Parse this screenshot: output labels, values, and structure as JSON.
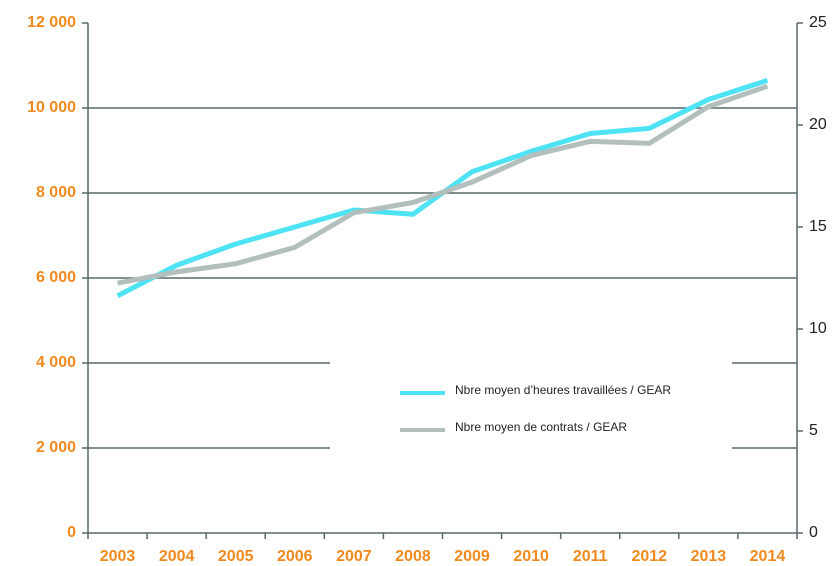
{
  "chart_data": {
    "type": "line",
    "categories": [
      "2003",
      "2004",
      "2005",
      "2006",
      "2007",
      "2008",
      "2009",
      "2010",
      "2011",
      "2012",
      "2013",
      "2014"
    ],
    "series": [
      {
        "name": "Nbre moyen d’heures travaillées / GEAR",
        "color": "#4de3f5",
        "values": [
          5580,
          6300,
          6800,
          7200,
          7600,
          7500,
          8500,
          8980,
          9400,
          9520,
          10200,
          10650
        ]
      },
      {
        "name": "Nbre moyen de contrats / GEAR",
        "color": "#b3bfbc",
        "axis": "y2",
        "values": [
          12.25,
          12.8,
          13.2,
          14.0,
          15.7,
          16.2,
          17.2,
          18.5,
          19.2,
          19.1,
          20.9,
          21.9
        ]
      }
    ],
    "ylim": [
      0,
      12000
    ],
    "yticks": [
      0,
      {
        "value": 2000,
        "label": "2 000"
      },
      {
        "value": 4000,
        "label": "4 000"
      },
      {
        "value": 6000,
        "label": "6 000"
      },
      {
        "value": 8000,
        "label": "8 000"
      },
      {
        "value": 10000,
        "label": "10 000"
      },
      {
        "value": 12000,
        "label": "12 000"
      }
    ],
    "y2lim": [
      0,
      25
    ],
    "y2ticks": [
      0,
      5,
      10,
      15,
      20,
      25
    ],
    "grid": true,
    "legend": "center"
  }
}
